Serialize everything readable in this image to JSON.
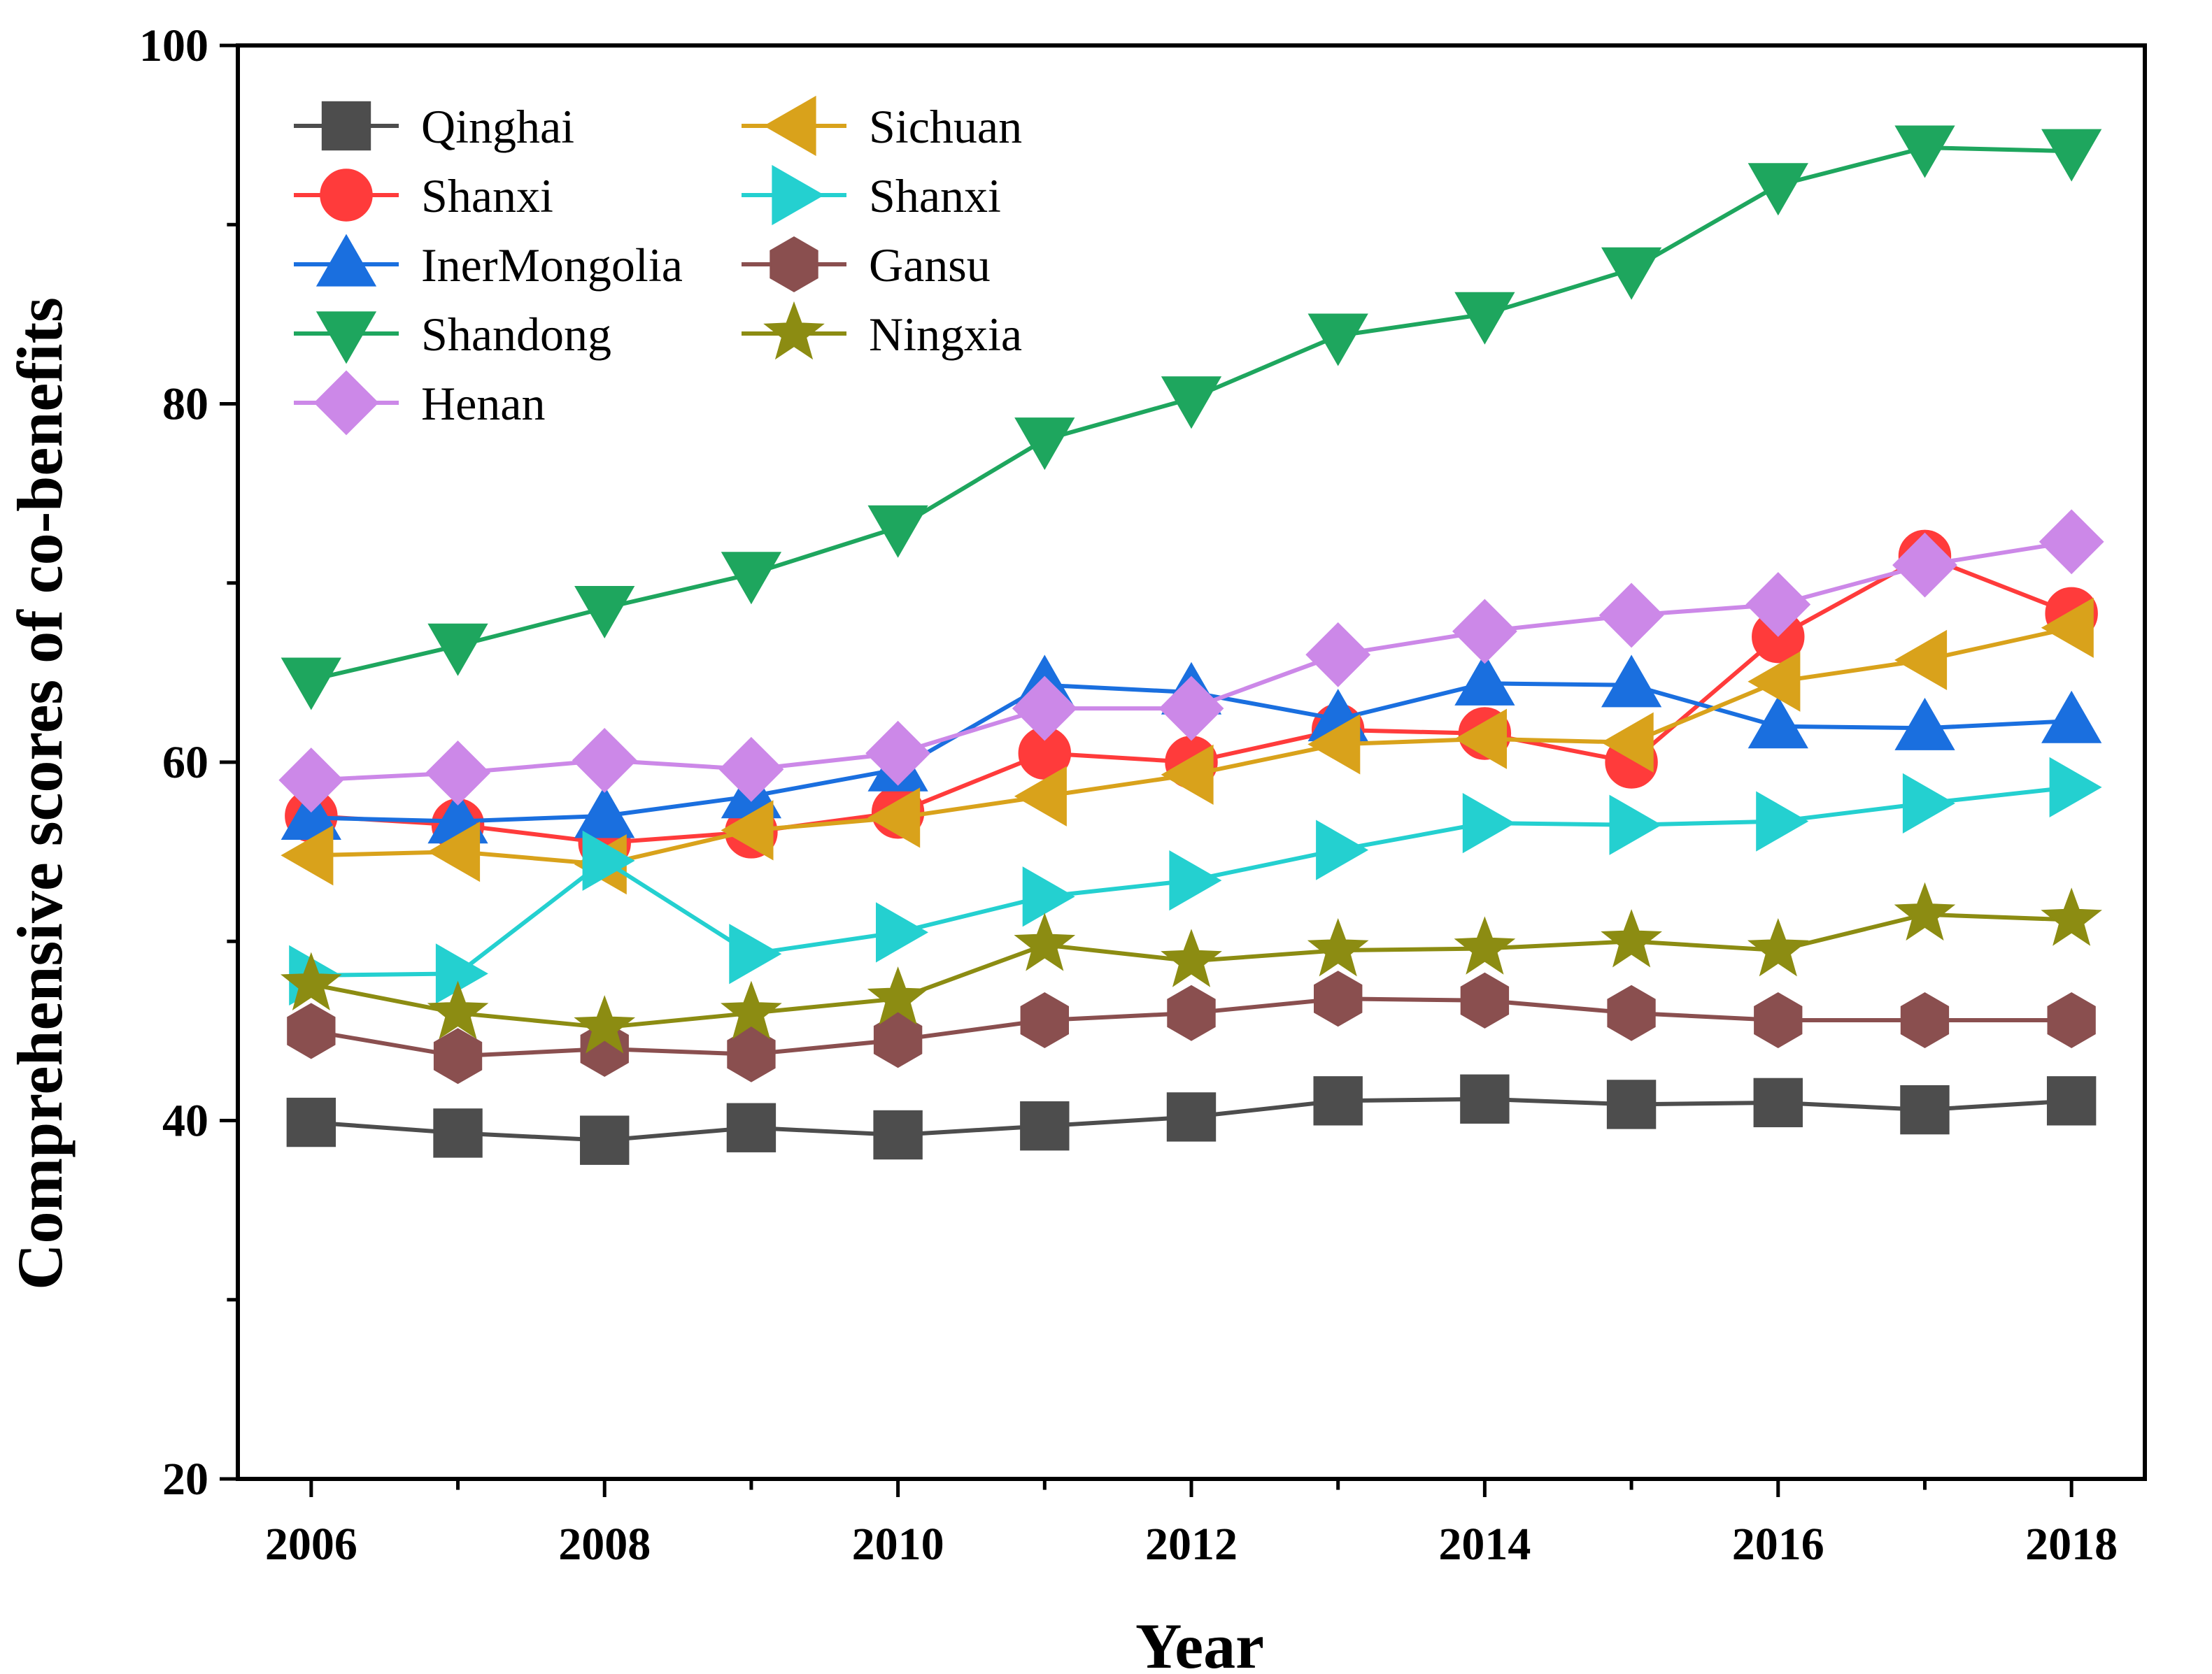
{
  "chart_data": {
    "type": "line",
    "title": "",
    "xlabel": "Year",
    "ylabel": "Comprehensive scores of co-benefits",
    "xlim": [
      2005.5,
      2018.5
    ],
    "ylim": [
      20,
      100
    ],
    "x": [
      2006,
      2007,
      2008,
      2009,
      2010,
      2011,
      2012,
      2013,
      2014,
      2015,
      2016,
      2017,
      2018
    ],
    "x_ticks": [
      2006,
      2008,
      2010,
      2012,
      2014,
      2016,
      2018
    ],
    "x_tick_labels": [
      "2006",
      "2008",
      "2010",
      "2012",
      "2014",
      "2016",
      "2018"
    ],
    "y_ticks": [
      20,
      40,
      60,
      80,
      100
    ],
    "y_tick_labels": [
      "20",
      "40",
      "60",
      "80",
      "100"
    ],
    "grid": false,
    "legend_position": "top-left",
    "series": [
      {
        "name": "Qinghai",
        "color": "#4d4d4d",
        "marker": "square",
        "values": [
          39.9,
          39.3,
          38.9,
          39.6,
          39.2,
          39.7,
          40.2,
          41.1,
          41.2,
          40.9,
          41.0,
          40.6,
          41.1
        ]
      },
      {
        "name": "Shanxi",
        "color": "#ff3b3b",
        "marker": "circle",
        "values": [
          57.0,
          56.5,
          55.5,
          56.1,
          57.2,
          60.5,
          60.0,
          61.8,
          61.6,
          60.0,
          67.0,
          71.5,
          68.3
        ]
      },
      {
        "name": "InerMongolia",
        "color": "#1a6fdf",
        "marker": "triangle-up",
        "values": [
          56.9,
          56.7,
          57.0,
          58.1,
          59.6,
          64.3,
          63.9,
          62.4,
          64.4,
          64.3,
          62.0,
          61.9,
          62.3
        ]
      },
      {
        "name": "Shandong",
        "color": "#1ea65e",
        "marker": "triangle-down",
        "values": [
          64.6,
          66.5,
          68.6,
          70.5,
          73.1,
          78.0,
          80.3,
          83.8,
          85.0,
          87.5,
          92.2,
          94.3,
          94.1
        ]
      },
      {
        "name": "Henan",
        "color": "#cc88e8",
        "marker": "diamond",
        "values": [
          59.0,
          59.4,
          60.1,
          59.6,
          60.5,
          63.0,
          63.0,
          66.0,
          67.3,
          68.2,
          68.8,
          71.0,
          72.3
        ]
      },
      {
        "name": "Sichuan",
        "color": "#d9a21b",
        "marker": "triangle-left",
        "values": [
          54.8,
          55.0,
          54.3,
          56.2,
          56.9,
          58.1,
          59.3,
          61.0,
          61.3,
          61.1,
          64.5,
          65.7,
          67.5
        ]
      },
      {
        "name": "Shanxi",
        "color": "#24d0d0",
        "marker": "triangle-right",
        "values": [
          48.1,
          48.2,
          54.5,
          49.3,
          50.5,
          52.5,
          53.4,
          55.1,
          56.6,
          56.5,
          56.7,
          57.7,
          58.6
        ]
      },
      {
        "name": "Gansu",
        "color": "#8a4f4f",
        "marker": "hexagon",
        "values": [
          45.0,
          43.6,
          44.0,
          43.7,
          44.5,
          45.6,
          46.0,
          46.8,
          46.7,
          46.0,
          45.6,
          45.6,
          45.6
        ]
      },
      {
        "name": "Ningxia",
        "color": "#8c8c12",
        "marker": "star",
        "values": [
          47.6,
          46.0,
          45.2,
          46.0,
          46.8,
          49.8,
          48.9,
          49.5,
          49.6,
          50.0,
          49.5,
          51.5,
          51.2
        ]
      }
    ]
  }
}
